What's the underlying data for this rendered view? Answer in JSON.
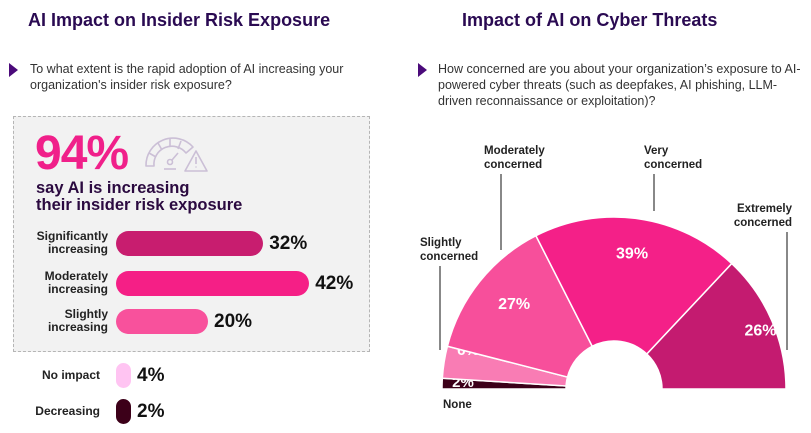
{
  "left_panel": {
    "title": "AI Impact on Insider Risk Exposure",
    "question": "To what extent is the rapid adoption of AI increasing your organization's insider risk exposure?",
    "headline_value": "94%",
    "headline_text_line1": "say AI is increasing",
    "headline_text_line2": "their insider risk exposure",
    "icon": "gauge-warning-icon"
  },
  "right_panel": {
    "title": "Impact of AI on Cyber Threats",
    "question": "How concerned are you about your organization’s exposure to AI-powered cyber threats (such as deepfakes, AI phishing, LLM-driven reconnaissance or exploitation)?"
  },
  "colors": {
    "title": "#2a0a52",
    "accent": "#f0208a",
    "significantly": "#c81d6f",
    "moderately": "#f51f86",
    "slightly": "#f8519c",
    "no_impact": "#ffc4f2",
    "decreasing": "#3c0019",
    "extremely_concerned": "#c41b70",
    "very_concerned": "#f42088",
    "moderately_concerned": "#f74f9b",
    "slightly_concerned": "#f97cb4",
    "none": "#3c0019"
  },
  "chart_data": [
    {
      "type": "bar",
      "title": "AI Impact on Insider Risk Exposure",
      "orientation": "horizontal",
      "categories": [
        {
          "line1": "Significantly",
          "line2": "increasing"
        },
        {
          "line1": "Moderately",
          "line2": "increasing"
        },
        {
          "line1": "Slightly",
          "line2": "increasing"
        },
        {
          "line1": "No impact",
          "line2": ""
        },
        {
          "line1": "Decreasing",
          "line2": ""
        }
      ],
      "values": [
        32,
        42,
        20,
        4,
        2
      ],
      "value_labels": [
        "32%",
        "42%",
        "20%",
        "4%",
        "2%"
      ],
      "unit": "%"
    },
    {
      "type": "pie",
      "variant": "semi-donut",
      "title": "Impact of AI on Cyber Threats",
      "order": "left-to-right",
      "categories": [
        {
          "line1": "None",
          "line2": ""
        },
        {
          "line1": "Slightly",
          "line2": "concerned"
        },
        {
          "line1": "Moderately",
          "line2": "concerned"
        },
        {
          "line1": "Very",
          "line2": "concerned"
        },
        {
          "line1": "Extremely",
          "line2": "concerned"
        }
      ],
      "values": [
        2,
        6,
        27,
        39,
        26
      ],
      "value_labels": [
        "2%",
        "6%",
        "27%",
        "39%",
        "26%"
      ],
      "unit": "%"
    }
  ]
}
